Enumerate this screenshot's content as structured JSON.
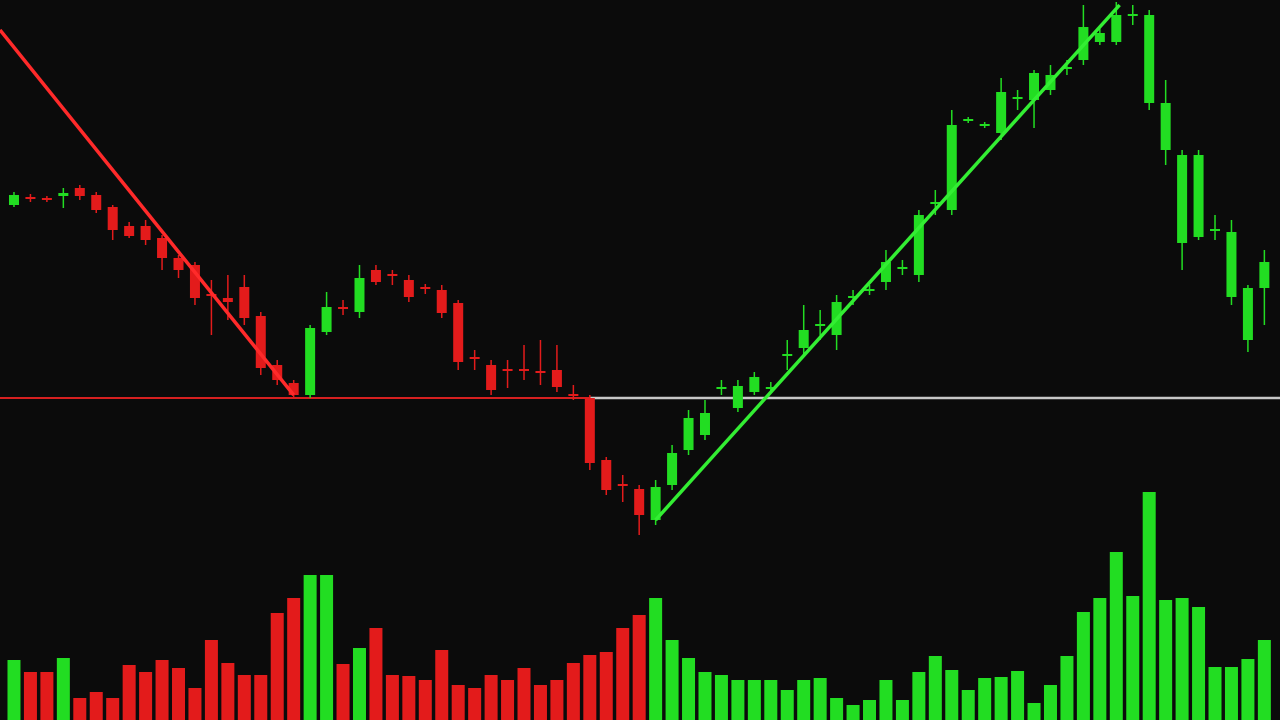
{
  "chart_data": {
    "type": "candlestick",
    "background": "#0b0b0b",
    "xlim": [
      -0.85,
      76.95
    ],
    "ylim": [
      0,
      540
    ],
    "volume_lim": [
      0,
      240
    ],
    "open": [
      335,
      343,
      342,
      344,
      352,
      345,
      333,
      314,
      314,
      302,
      282,
      275,
      246,
      242,
      253,
      224,
      175,
      157,
      145,
      208,
      233,
      228,
      270,
      266,
      260,
      253,
      250,
      237,
      183,
      175,
      171,
      171,
      169,
      170,
      146,
      142,
      80,
      56,
      51,
      20,
      55,
      90,
      105,
      153,
      132,
      148,
      151,
      184,
      192,
      214,
      205,
      242,
      249,
      258,
      271,
      265,
      336,
      330,
      419,
      414,
      407,
      441,
      440,
      450,
      471,
      480,
      498,
      498,
      524,
      525,
      437,
      385,
      385,
      311,
      308,
      252,
      278
    ],
    "high": [
      348,
      346,
      344,
      352,
      355,
      348,
      335,
      318,
      320,
      305,
      285,
      278,
      260,
      265,
      265,
      228,
      180,
      160,
      215,
      248,
      240,
      275,
      275,
      270,
      265,
      256,
      255,
      240,
      190,
      180,
      180,
      195,
      200,
      195,
      155,
      145,
      83,
      65,
      55,
      60,
      95,
      130,
      140,
      160,
      160,
      168,
      158,
      200,
      235,
      230,
      245,
      250,
      255,
      290,
      280,
      330,
      350,
      430,
      423,
      418,
      462,
      450,
      470,
      475,
      480,
      535,
      512,
      538,
      535,
      530,
      460,
      390,
      390,
      325,
      320,
      255,
      290
    ],
    "low": [
      333,
      338,
      338,
      332,
      340,
      327,
      300,
      302,
      295,
      270,
      262,
      235,
      205,
      220,
      215,
      165,
      155,
      142,
      142,
      205,
      225,
      222,
      255,
      255,
      238,
      246,
      222,
      170,
      170,
      145,
      152,
      160,
      155,
      148,
      140,
      70,
      45,
      38,
      5,
      15,
      50,
      85,
      100,
      145,
      128,
      145,
      148,
      170,
      185,
      200,
      190,
      235,
      245,
      250,
      265,
      258,
      325,
      325,
      417,
      412,
      400,
      430,
      412,
      445,
      465,
      475,
      495,
      495,
      515,
      430,
      375,
      270,
      300,
      300,
      235,
      188,
      215
    ],
    "close": [
      345,
      341,
      340,
      347,
      344,
      330,
      310,
      304,
      300,
      282,
      270,
      242,
      244,
      238,
      222,
      172,
      160,
      145,
      212,
      233,
      231,
      262,
      258,
      264,
      243,
      251,
      227,
      178,
      181,
      150,
      169,
      169,
      167,
      153,
      144,
      77,
      50,
      54,
      25,
      53,
      87,
      122,
      127,
      151,
      154,
      163,
      153,
      186,
      210,
      216,
      238,
      244,
      251,
      278,
      273,
      325,
      338,
      415,
      421,
      416,
      448,
      443,
      467,
      465,
      473,
      513,
      507,
      525,
      526,
      437,
      390,
      297,
      303,
      309,
      243,
      200,
      252
    ],
    "volume": [
      60,
      48,
      48,
      62,
      22,
      28,
      22,
      55,
      48,
      60,
      52,
      32,
      80,
      57,
      45,
      45,
      107,
      122,
      145,
      145,
      56,
      72,
      92,
      45,
      44,
      40,
      70,
      35,
      32,
      45,
      40,
      52,
      35,
      40,
      57,
      65,
      68,
      92,
      105,
      122,
      80,
      62,
      48,
      45,
      40,
      40,
      40,
      30,
      40,
      42,
      22,
      15,
      20,
      40,
      20,
      48,
      64,
      50,
      30,
      42,
      43,
      49,
      17,
      35,
      64,
      108,
      122,
      168,
      124,
      228,
      120,
      122,
      113,
      53,
      53,
      61,
      80
    ],
    "colors": [
      "#22dd22",
      "#e31b1b",
      "#e31b1b",
      "#22dd22",
      "#e31b1b",
      "#e31b1b",
      "#e31b1b",
      "#e31b1b",
      "#e31b1b",
      "#e31b1b",
      "#e31b1b",
      "#e31b1b",
      "#e31b1b",
      "#e31b1b",
      "#e31b1b",
      "#e31b1b",
      "#e31b1b",
      "#e31b1b",
      "#22dd22",
      "#22dd22",
      "#e31b1b",
      "#22dd22",
      "#e31b1b",
      "#e31b1b",
      "#e31b1b",
      "#e31b1b",
      "#e31b1b",
      "#e31b1b",
      "#e31b1b",
      "#e31b1b",
      "#e31b1b",
      "#e31b1b",
      "#e31b1b",
      "#e31b1b",
      "#e31b1b",
      "#e31b1b",
      "#e31b1b",
      "#e31b1b",
      "#e31b1b",
      "#22dd22",
      "#22dd22",
      "#22dd22",
      "#22dd22",
      "#22dd22",
      "#22dd22",
      "#22dd22",
      "#22dd22",
      "#22dd22",
      "#22dd22",
      "#22dd22",
      "#22dd22",
      "#22dd22",
      "#22dd22",
      "#22dd22",
      "#22dd22",
      "#22dd22",
      "#22dd22",
      "#22dd22",
      "#22dd22",
      "#22dd22",
      "#22dd22",
      "#22dd22",
      "#22dd22",
      "#22dd22",
      "#22dd22",
      "#22dd22",
      "#22dd22",
      "#22dd22",
      "#22dd22",
      "#22dd22",
      "#22dd22",
      "#22dd22",
      "#22dd22",
      "#22dd22",
      "#22dd22",
      "#22dd22",
      "#22dd22"
    ],
    "level": 142,
    "level_split": 35,
    "level_colors": [
      "#d62020",
      "#c8c8c8"
    ],
    "trendlines": [
      {
        "x": [
          -0.85,
          17
        ],
        "y": [
          510,
          145
        ],
        "color": "#ff2a2a"
      },
      {
        "x": [
          39,
          67.2
        ],
        "y": [
          20,
          535
        ],
        "color": "#33ee33"
      }
    ]
  }
}
